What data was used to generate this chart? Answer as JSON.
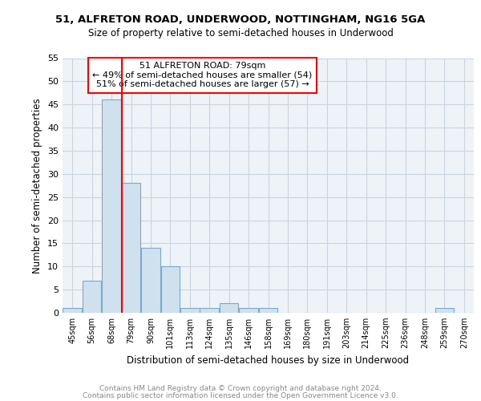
{
  "title1": "51, ALFRETON ROAD, UNDERWOOD, NOTTINGHAM, NG16 5GA",
  "title2": "Size of property relative to semi-detached houses in Underwood",
  "xlabel": "Distribution of semi-detached houses by size in Underwood",
  "ylabel": "Number of semi-detached properties",
  "footnote1": "Contains HM Land Registry data © Crown copyright and database right 2024.",
  "footnote2": "Contains public sector information licensed under the Open Government Licence v3.0.",
  "bins": [
    "45sqm",
    "56sqm",
    "68sqm",
    "79sqm",
    "90sqm",
    "101sqm",
    "113sqm",
    "124sqm",
    "135sqm",
    "146sqm",
    "158sqm",
    "169sqm",
    "180sqm",
    "191sqm",
    "203sqm",
    "214sqm",
    "225sqm",
    "236sqm",
    "248sqm",
    "259sqm",
    "270sqm"
  ],
  "values": [
    1,
    7,
    46,
    28,
    14,
    10,
    1,
    1,
    2,
    1,
    1,
    0,
    0,
    0,
    0,
    0,
    0,
    0,
    0,
    1,
    0
  ],
  "bar_color": "#cfe0ef",
  "bar_edge_color": "#7aaac8",
  "property_line_bin_index": 3,
  "annotation_title": "51 ALFRETON ROAD: 79sqm",
  "annotation_line1": "← 49% of semi-detached houses are smaller (54)",
  "annotation_line2": "51% of semi-detached houses are larger (57) →",
  "annotation_box_color": "#cc0000",
  "ylim": [
    0,
    55
  ],
  "yticks": [
    0,
    5,
    10,
    15,
    20,
    25,
    30,
    35,
    40,
    45,
    50,
    55
  ],
  "grid_color": "#c8d4e0",
  "background_color": "#eef3f8"
}
